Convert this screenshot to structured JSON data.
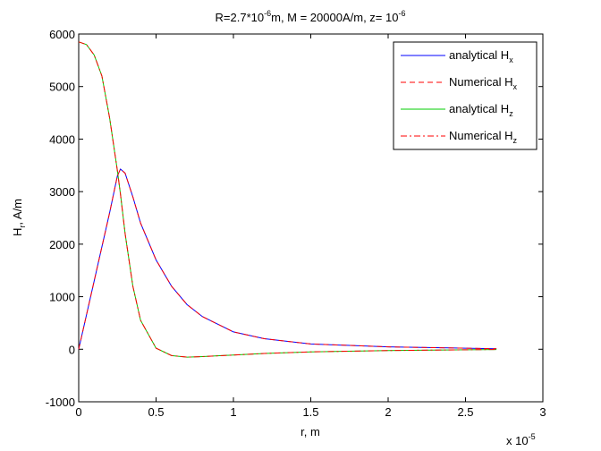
{
  "chart_data": {
    "type": "line",
    "title": {
      "parts": [
        "R=2.7*10",
        "-6",
        "m, M = 20000A/m, z= 10",
        "-6"
      ]
    },
    "x_label": "r, m",
    "x_exponent": {
      "base": "x 10",
      "power": "-5"
    },
    "y_label": {
      "main": "H",
      "sub": "r",
      "rest": ", A/m"
    },
    "x": [
      0,
      0.05,
      0.1,
      0.15,
      0.2,
      0.25,
      0.27,
      0.3,
      0.35,
      0.4,
      0.5,
      0.6,
      0.7,
      0.8,
      1.0,
      1.2,
      1.5,
      2.0,
      2.5,
      2.7
    ],
    "series": [
      {
        "name": "analytical H",
        "name_sub": "x",
        "color": "#0000ff",
        "dash": "solid",
        "values": [
          0,
          650,
          1300,
          1950,
          2600,
          3300,
          3430,
          3350,
          2900,
          2400,
          1700,
          1200,
          850,
          620,
          330,
          200,
          100,
          45,
          20,
          10
        ]
      },
      {
        "name": "Numerical H",
        "name_sub": "x",
        "color": "#ff0000",
        "dash": "dashed",
        "values": [
          0,
          650,
          1300,
          1950,
          2600,
          3300,
          3430,
          3350,
          2900,
          2400,
          1700,
          1200,
          850,
          620,
          330,
          200,
          100,
          45,
          20,
          10
        ]
      },
      {
        "name": "analytical H",
        "name_sub": "z",
        "color": "#00cc00",
        "dash": "solid",
        "values": [
          5850,
          5800,
          5600,
          5200,
          4400,
          3400,
          2950,
          2200,
          1200,
          550,
          20,
          -120,
          -150,
          -140,
          -110,
          -80,
          -50,
          -25,
          -10,
          -5
        ]
      },
      {
        "name": "Numerical H",
        "name_sub": "z",
        "color": "#ff0000",
        "dash": "dashdot",
        "values": [
          5850,
          5800,
          5600,
          5200,
          4400,
          3400,
          2950,
          2200,
          1200,
          550,
          20,
          -120,
          -150,
          -140,
          -110,
          -80,
          -50,
          -25,
          -10,
          -5
        ]
      }
    ],
    "xlim": [
      0,
      3
    ],
    "xticks": [
      0,
      0.5,
      1,
      1.5,
      2,
      2.5,
      3
    ],
    "ylim": [
      -1000,
      6000
    ],
    "yticks": [
      -1000,
      0,
      1000,
      2000,
      3000,
      4000,
      5000,
      6000
    ],
    "grid": false,
    "legend": "top-right"
  }
}
